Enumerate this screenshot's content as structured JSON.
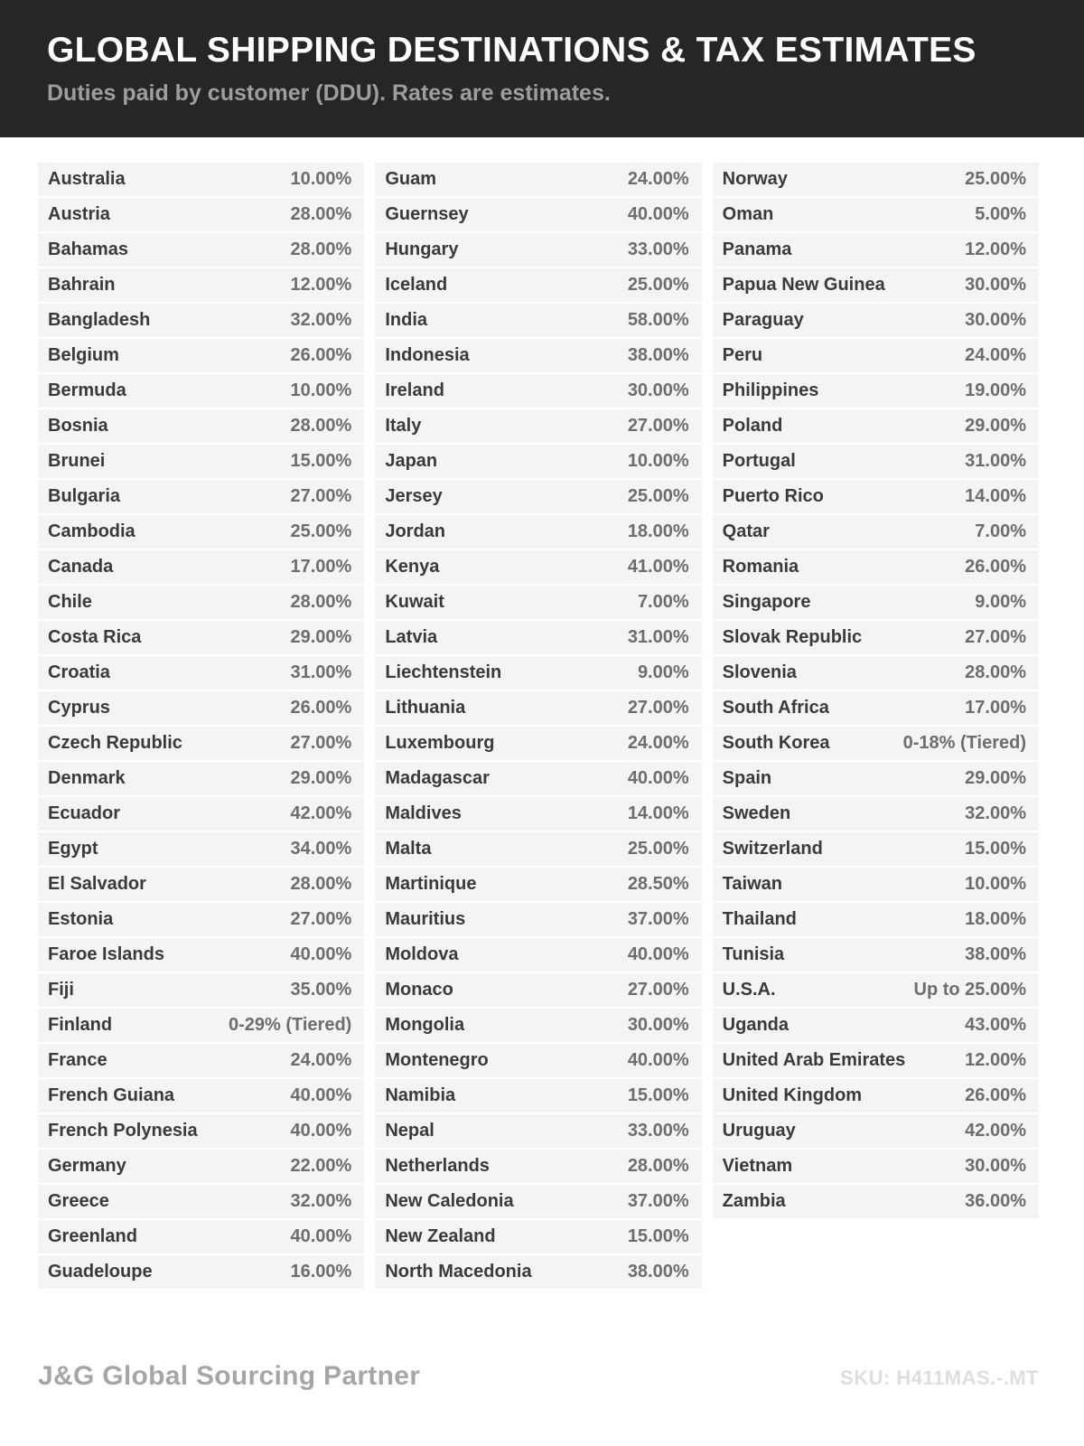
{
  "header": {
    "title": "GLOBAL SHIPPING DESTINATIONS & TAX ESTIMATES",
    "subtitle": "Duties paid by customer (DDU). Rates are estimates.",
    "bg_color": "#262626",
    "title_color": "#ffffff",
    "subtitle_color": "#9e9e9e"
  },
  "table": {
    "row_bg_color": "#f4f4f4",
    "country_text_color": "#3a3a3a",
    "rate_text_color": "#6d6d6d",
    "columns": [
      [
        {
          "country": "Australia",
          "rate": "10.00%"
        },
        {
          "country": "Austria",
          "rate": "28.00%"
        },
        {
          "country": "Bahamas",
          "rate": "28.00%"
        },
        {
          "country": "Bahrain",
          "rate": "12.00%"
        },
        {
          "country": "Bangladesh",
          "rate": "32.00%"
        },
        {
          "country": "Belgium",
          "rate": "26.00%"
        },
        {
          "country": "Bermuda",
          "rate": "10.00%"
        },
        {
          "country": "Bosnia",
          "rate": "28.00%"
        },
        {
          "country": "Brunei",
          "rate": "15.00%"
        },
        {
          "country": "Bulgaria",
          "rate": "27.00%"
        },
        {
          "country": "Cambodia",
          "rate": "25.00%"
        },
        {
          "country": "Canada",
          "rate": "17.00%"
        },
        {
          "country": "Chile",
          "rate": "28.00%"
        },
        {
          "country": "Costa Rica",
          "rate": "29.00%"
        },
        {
          "country": "Croatia",
          "rate": "31.00%"
        },
        {
          "country": "Cyprus",
          "rate": "26.00%"
        },
        {
          "country": "Czech Republic",
          "rate": "27.00%"
        },
        {
          "country": "Denmark",
          "rate": "29.00%"
        },
        {
          "country": "Ecuador",
          "rate": "42.00%"
        },
        {
          "country": "Egypt",
          "rate": "34.00%"
        },
        {
          "country": "El Salvador",
          "rate": "28.00%"
        },
        {
          "country": "Estonia",
          "rate": "27.00%"
        },
        {
          "country": "Faroe Islands",
          "rate": "40.00%"
        },
        {
          "country": "Fiji",
          "rate": "35.00%"
        },
        {
          "country": "Finland",
          "rate": "0-29% (Tiered)"
        },
        {
          "country": "France",
          "rate": "24.00%"
        },
        {
          "country": "French Guiana",
          "rate": "40.00%"
        },
        {
          "country": "French Polynesia",
          "rate": "40.00%"
        },
        {
          "country": "Germany",
          "rate": "22.00%"
        },
        {
          "country": "Greece",
          "rate": "32.00%"
        },
        {
          "country": "Greenland",
          "rate": "40.00%"
        },
        {
          "country": "Guadeloupe",
          "rate": "16.00%"
        }
      ],
      [
        {
          "country": "Guam",
          "rate": "24.00%"
        },
        {
          "country": "Guernsey",
          "rate": "40.00%"
        },
        {
          "country": "Hungary",
          "rate": "33.00%"
        },
        {
          "country": "Iceland",
          "rate": "25.00%"
        },
        {
          "country": "India",
          "rate": "58.00%"
        },
        {
          "country": "Indonesia",
          "rate": "38.00%"
        },
        {
          "country": "Ireland",
          "rate": "30.00%"
        },
        {
          "country": "Italy",
          "rate": "27.00%"
        },
        {
          "country": "Japan",
          "rate": "10.00%"
        },
        {
          "country": "Jersey",
          "rate": "25.00%"
        },
        {
          "country": "Jordan",
          "rate": "18.00%"
        },
        {
          "country": "Kenya",
          "rate": "41.00%"
        },
        {
          "country": "Kuwait",
          "rate": "7.00%"
        },
        {
          "country": "Latvia",
          "rate": "31.00%"
        },
        {
          "country": "Liechtenstein",
          "rate": "9.00%"
        },
        {
          "country": "Lithuania",
          "rate": "27.00%"
        },
        {
          "country": "Luxembourg",
          "rate": "24.00%"
        },
        {
          "country": "Madagascar",
          "rate": "40.00%"
        },
        {
          "country": "Maldives",
          "rate": "14.00%"
        },
        {
          "country": "Malta",
          "rate": "25.00%"
        },
        {
          "country": "Martinique",
          "rate": "28.50%"
        },
        {
          "country": "Mauritius",
          "rate": "37.00%"
        },
        {
          "country": "Moldova",
          "rate": "40.00%"
        },
        {
          "country": "Monaco",
          "rate": "27.00%"
        },
        {
          "country": "Mongolia",
          "rate": "30.00%"
        },
        {
          "country": "Montenegro",
          "rate": "40.00%"
        },
        {
          "country": "Namibia",
          "rate": "15.00%"
        },
        {
          "country": "Nepal",
          "rate": "33.00%"
        },
        {
          "country": "Netherlands",
          "rate": "28.00%"
        },
        {
          "country": "New Caledonia",
          "rate": "37.00%"
        },
        {
          "country": "New Zealand",
          "rate": "15.00%"
        },
        {
          "country": "North Macedonia",
          "rate": "38.00%"
        }
      ],
      [
        {
          "country": "Norway",
          "rate": "25.00%"
        },
        {
          "country": "Oman",
          "rate": "5.00%"
        },
        {
          "country": "Panama",
          "rate": "12.00%"
        },
        {
          "country": "Papua New Guinea",
          "rate": "30.00%"
        },
        {
          "country": "Paraguay",
          "rate": "30.00%"
        },
        {
          "country": "Peru",
          "rate": "24.00%"
        },
        {
          "country": "Philippines",
          "rate": "19.00%"
        },
        {
          "country": "Poland",
          "rate": "29.00%"
        },
        {
          "country": "Portugal",
          "rate": "31.00%"
        },
        {
          "country": "Puerto Rico",
          "rate": "14.00%"
        },
        {
          "country": "Qatar",
          "rate": "7.00%"
        },
        {
          "country": "Romania",
          "rate": "26.00%"
        },
        {
          "country": "Singapore",
          "rate": "9.00%"
        },
        {
          "country": "Slovak Republic",
          "rate": "27.00%"
        },
        {
          "country": "Slovenia",
          "rate": "28.00%"
        },
        {
          "country": "South Africa",
          "rate": "17.00%"
        },
        {
          "country": "South Korea",
          "rate": "0-18% (Tiered)"
        },
        {
          "country": "Spain",
          "rate": "29.00%"
        },
        {
          "country": "Sweden",
          "rate": "32.00%"
        },
        {
          "country": "Switzerland",
          "rate": "15.00%"
        },
        {
          "country": "Taiwan",
          "rate": "10.00%"
        },
        {
          "country": "Thailand",
          "rate": "18.00%"
        },
        {
          "country": "Tunisia",
          "rate": "38.00%"
        },
        {
          "country": "U.S.A.",
          "rate": "Up to 25.00%"
        },
        {
          "country": "Uganda",
          "rate": "43.00%"
        },
        {
          "country": "United Arab Emirates",
          "rate": "12.00%"
        },
        {
          "country": "United Kingdom",
          "rate": "26.00%"
        },
        {
          "country": "Uruguay",
          "rate": "42.00%"
        },
        {
          "country": "Vietnam",
          "rate": "30.00%"
        },
        {
          "country": "Zambia",
          "rate": "36.00%"
        }
      ]
    ]
  },
  "footer": {
    "brand": "J&G Global Sourcing Partner",
    "sku": "SKU: H411MAS.-.MT"
  }
}
